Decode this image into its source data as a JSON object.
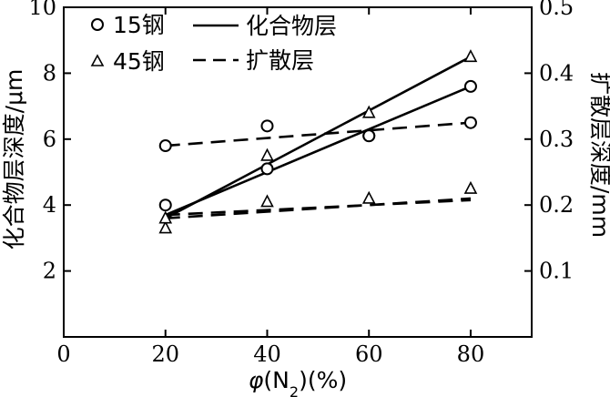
{
  "chart_data": {
    "type": "scatter",
    "title": "",
    "xlabel": "φ(N₂)(%)",
    "xlabel_parts": {
      "symbol": "φ",
      "open": "(N",
      "sub": "2",
      "close": ")(%)"
    },
    "ylabel_left": "化合物层深度/μm",
    "ylabel_right": "扩散层深度/mm",
    "xlim": [
      0,
      92
    ],
    "ylim_left": [
      0,
      10
    ],
    "ylim_right": [
      0,
      0.5
    ],
    "x_ticks": [
      0,
      20,
      40,
      60,
      80
    ],
    "x_tick_labels": [
      "0",
      "20",
      "40",
      "60",
      "80"
    ],
    "y_left_ticks": [
      2,
      4,
      6,
      8,
      10
    ],
    "y_left_tick_labels": [
      "2",
      "4",
      "6",
      "8",
      "10"
    ],
    "y_right_ticks": [
      0.1,
      0.2,
      0.3,
      0.4,
      0.5
    ],
    "y_right_tick_labels": [
      "0.1",
      "0.2",
      "0.3",
      "0.4",
      "0.5"
    ],
    "series": [
      {
        "name": "15钢",
        "marker": "circle",
        "x": [
          20,
          40,
          60,
          80
        ],
        "y": [
          4.0,
          5.1,
          6.1,
          7.6
        ]
      },
      {
        "name": "15钢",
        "marker": "circle",
        "x": [
          20,
          40,
          60,
          80
        ],
        "y": [
          5.8,
          6.4,
          6.1,
          6.5
        ]
      },
      {
        "name": "45钢",
        "marker": "triangle",
        "x": [
          20,
          40,
          60,
          80
        ],
        "y": [
          3.3,
          5.5,
          6.8,
          8.5
        ]
      },
      {
        "name": "45钢",
        "marker": "triangle",
        "x": [
          20,
          40,
          60,
          80
        ],
        "y": [
          3.6,
          4.1,
          4.2,
          4.5
        ]
      }
    ],
    "fit_lines": [
      {
        "style": "solid",
        "x": [
          20,
          80
        ],
        "y": [
          3.7,
          7.6
        ]
      },
      {
        "style": "solid",
        "x": [
          20,
          80
        ],
        "y": [
          3.6,
          8.5
        ]
      },
      {
        "style": "dashed",
        "x": [
          20,
          80
        ],
        "y": [
          5.8,
          6.5
        ]
      },
      {
        "style": "dashed",
        "x": [
          20,
          80
        ],
        "y": [
          3.7,
          4.15
        ]
      },
      {
        "style": "dashed",
        "x": [
          20,
          80
        ],
        "y": [
          3.6,
          4.2
        ]
      }
    ],
    "legend": {
      "position": "top-left",
      "items": [
        {
          "type": "marker",
          "marker": "circle",
          "label": "15钢"
        },
        {
          "type": "marker",
          "marker": "triangle",
          "label": "45钢"
        },
        {
          "type": "line",
          "style": "solid",
          "label": "化合物层"
        },
        {
          "type": "line",
          "style": "dashed",
          "label": "扩散层"
        }
      ]
    },
    "grid": false
  }
}
